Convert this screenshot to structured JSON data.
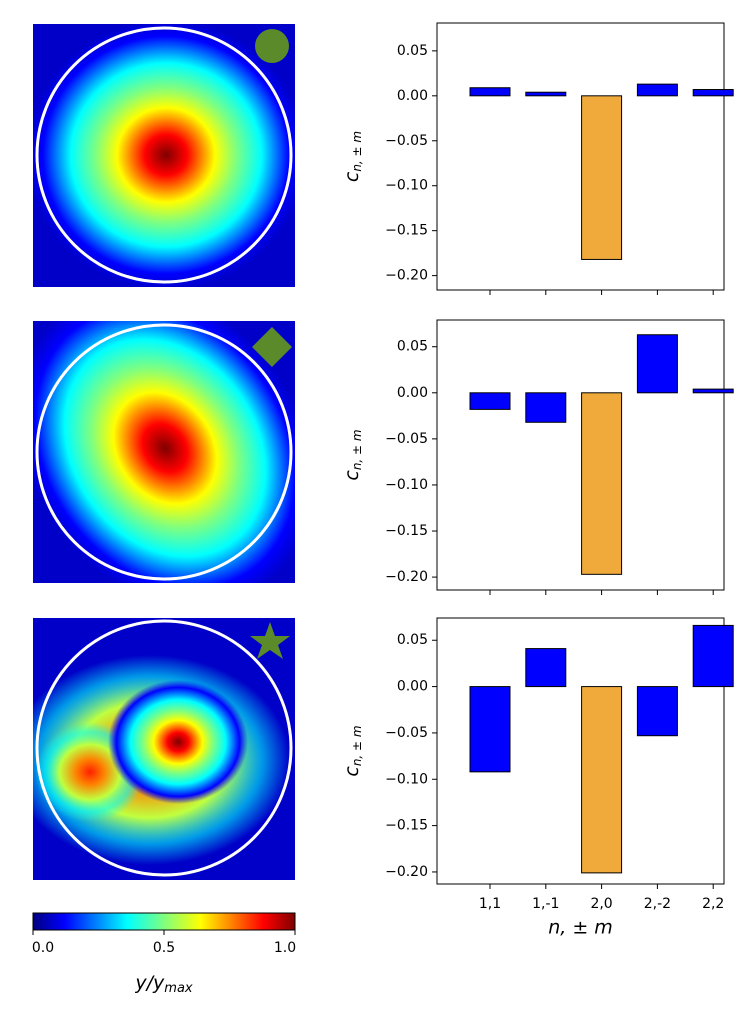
{
  "chart_data": [
    {
      "type": "bar",
      "values": [
        0.009,
        0.004,
        -0.182,
        0.013,
        0.007
      ],
      "colors": [
        "#0000ff",
        "#0000ff",
        "#f0aa3c",
        "#0000ff",
        "#0000ff"
      ],
      "ylim": [
        -0.216,
        0.081
      ],
      "yticks": [
        0.05,
        {
          "value": 0,
          "label": "0.00"
        },
        {
          "value": -0.05,
          "label": "−0.05"
        },
        {
          "value": -0.1,
          "label": "−0.10"
        },
        {
          "value": -0.15,
          "label": "−0.15"
        },
        {
          "value": -0.2,
          "label": "−0.20"
        }
      ],
      "ylabel": "c",
      "ylabel_sub": "n, ± m"
    },
    {
      "type": "bar",
      "values": [
        -0.018,
        -0.032,
        -0.197,
        0.063,
        0.004
      ],
      "colors": [
        "#0000ff",
        "#0000ff",
        "#f0aa3c",
        "#0000ff",
        "#0000ff"
      ],
      "ylim": [
        -0.214,
        0.079
      ],
      "yticks": [
        0.05,
        {
          "value": 0,
          "label": "0.00"
        },
        {
          "value": -0.05,
          "label": "−0.05"
        },
        {
          "value": -0.1,
          "label": "−0.10"
        },
        {
          "value": -0.15,
          "label": "−0.15"
        },
        {
          "value": -0.2,
          "label": "−0.20"
        }
      ],
      "ylabel": "c",
      "ylabel_sub": "n, ± m"
    },
    {
      "type": "bar",
      "categories": [
        "1,1",
        "1,-1",
        "2,0",
        "2,-2",
        "2,2"
      ],
      "values": [
        -0.092,
        0.041,
        -0.201,
        -0.053,
        0.066
      ],
      "colors": [
        "#0000ff",
        "#0000ff",
        "#f0aa3c",
        "#0000ff",
        "#0000ff"
      ],
      "ylim": [
        -0.213,
        0.074
      ],
      "yticks": [
        0.05,
        {
          "value": 0,
          "label": "0.00"
        },
        {
          "value": -0.05,
          "label": "−0.05"
        },
        {
          "value": -0.1,
          "label": "−0.10"
        },
        {
          "value": -0.15,
          "label": "−0.15"
        },
        {
          "value": -0.2,
          "label": "−0.20"
        }
      ],
      "ylabel": "c",
      "ylabel_sub": "n, ± m",
      "xlabel": "n, ± m"
    },
    {
      "type": "colorbar",
      "xlim": [
        0,
        1
      ],
      "xticks": [
        {
          "value": 0,
          "label": "0.0"
        },
        {
          "value": 0.5,
          "label": "0.5"
        },
        {
          "value": 1,
          "label": "1.0"
        }
      ],
      "label": "y/y",
      "label_sub": "max"
    }
  ]
}
